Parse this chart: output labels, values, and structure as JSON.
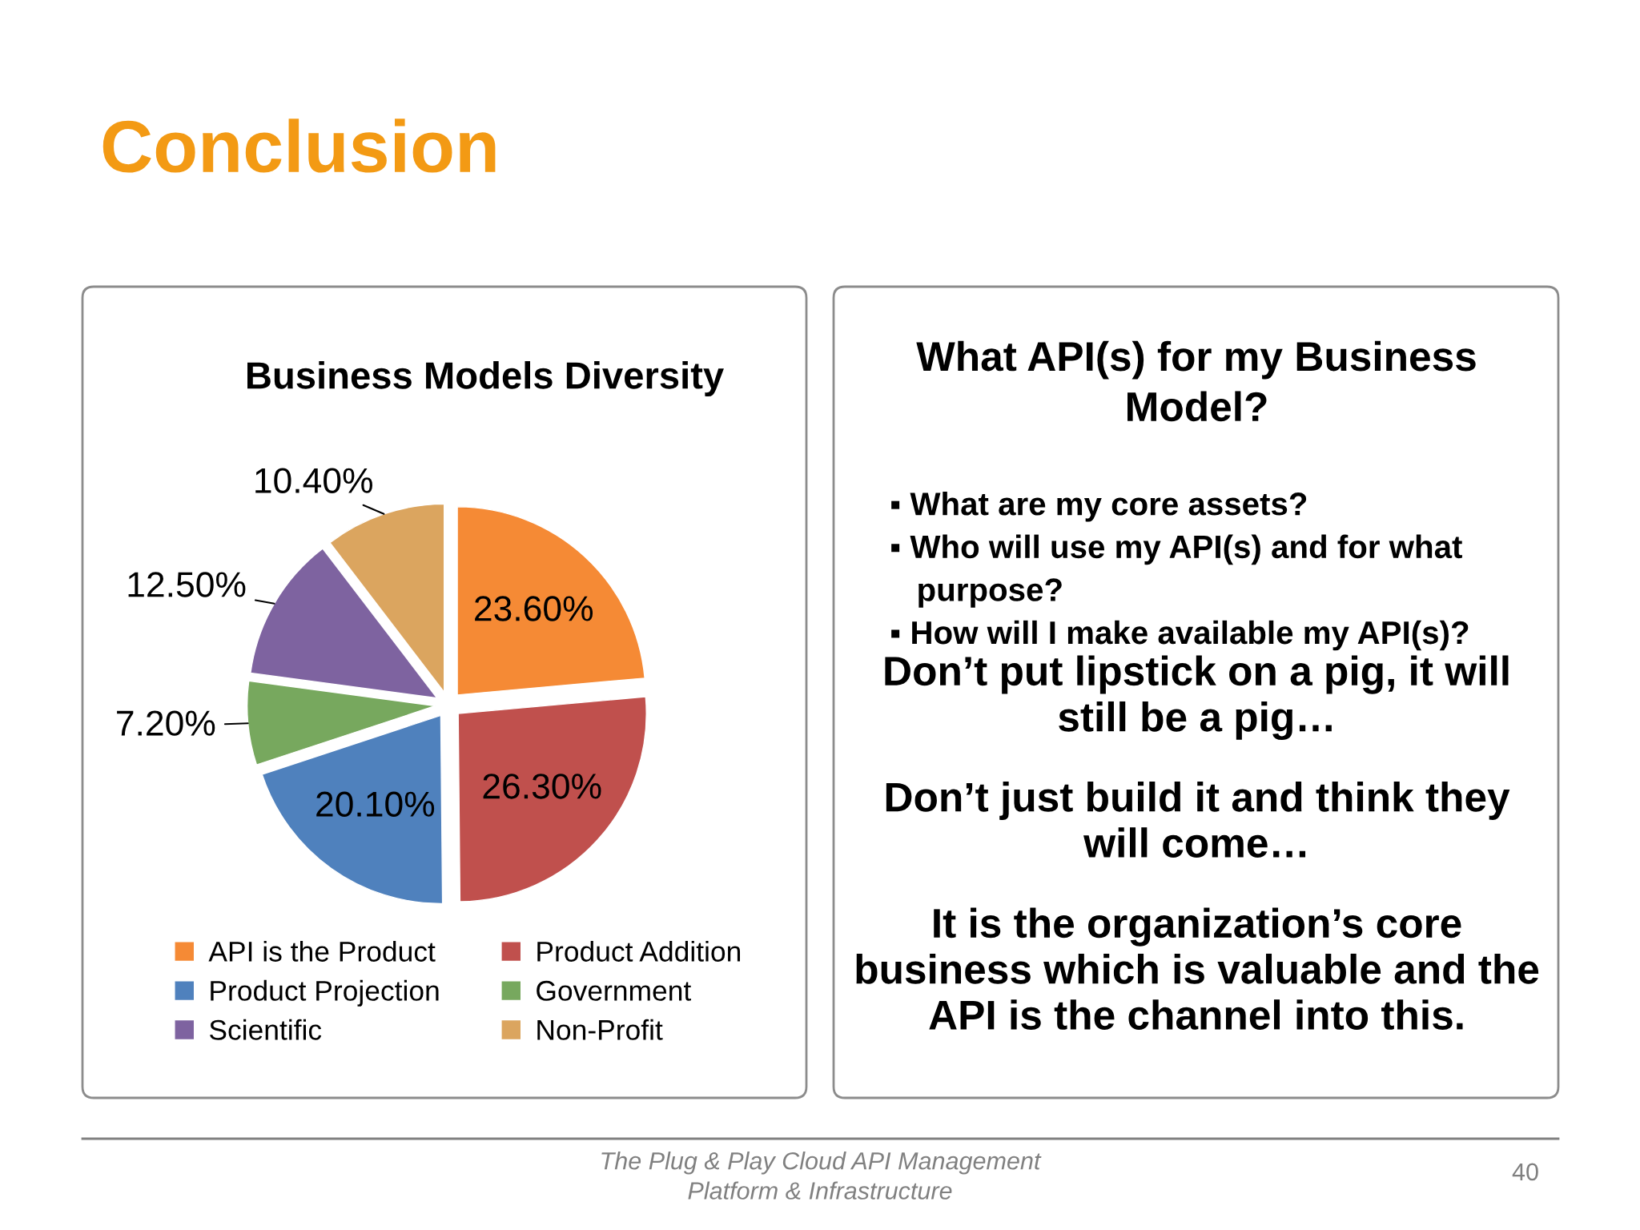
{
  "chart_data": [
    {
      "type": "pie",
      "title": "Business Models Diversity",
      "categories": [
        "API is the Product",
        "Product Addition",
        "Product Projection",
        "Government",
        "Scientific",
        "Non-Profit"
      ],
      "values": [
        23.6,
        26.3,
        20.1,
        7.2,
        12.5,
        10.4
      ],
      "colors": [
        "#f58a35",
        "#c0504d",
        "#4f81bd",
        "#77a85e",
        "#7e63a0",
        "#dba55f"
      ],
      "value_labels": [
        "23.60%",
        "26.30%",
        "20.10%",
        "7.20%",
        "12.50%",
        "10.40%"
      ],
      "legend": "bottom",
      "annotations": [
        "Conclusion",
        "The Plug & Play Cloud API Management\nPlatform & Infrastructure",
        "40"
      ]
    },
    {
      "type": "other",
      "title": "What API(s) for my Business\nModel?",
      "annotations": [
        "▪ What are my core assets?\n▪ Who will use my API(s) and for what\n   purpose?\n▪ How will I make available my API(s)?",
        "Don’t put lipstick on a pig, it will\nstill be a pig…",
        "Don’t just build it and think they\nwill come…",
        "It is the organization’s core\nbusiness which is valuable and the\nAPI is the channel into this."
      ]
    }
  ]
}
